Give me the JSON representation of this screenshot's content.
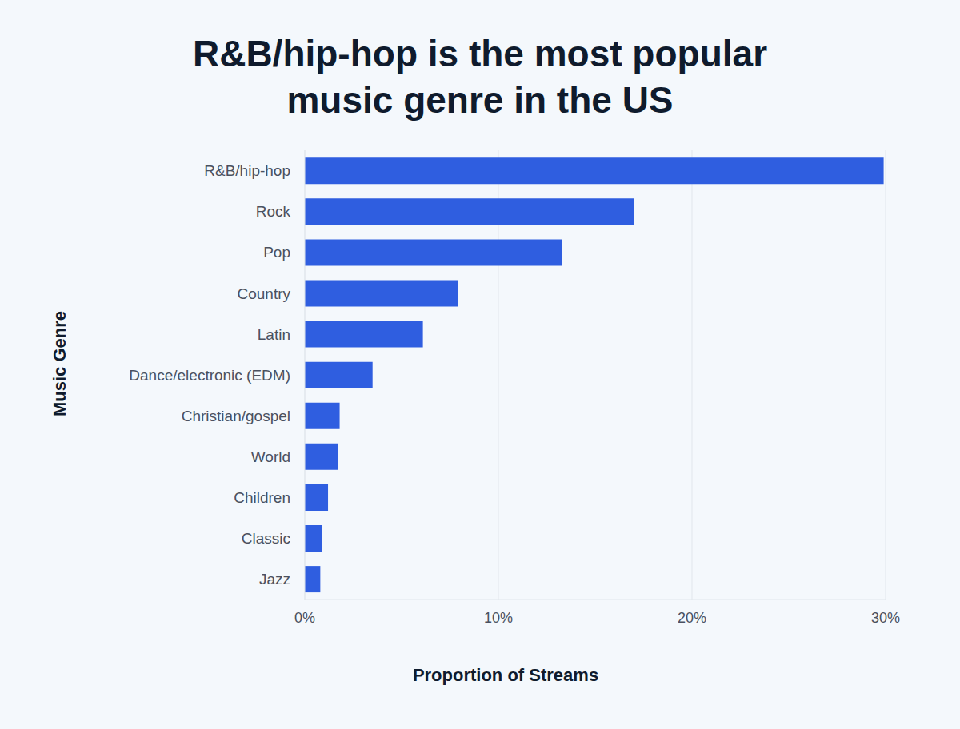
{
  "chart_data": {
    "type": "bar",
    "title": "R&B/hip-hop is the most popular music genre in the US",
    "orientation": "horizontal",
    "categories": [
      "R&B/hip-hop",
      "Rock",
      "Pop",
      "Country",
      "Latin",
      "Dance/electronic (EDM)",
      "Christian/gospel",
      "World",
      "Children",
      "Classic",
      "Jazz"
    ],
    "values": [
      29.9,
      17.0,
      13.3,
      7.9,
      6.1,
      3.5,
      1.8,
      1.7,
      1.2,
      0.9,
      0.8
    ],
    "color": "#2f5ee0",
    "x_label": "Proportion of Streams",
    "y_label": "Music Genre",
    "xlim": [
      0,
      30
    ],
    "xticks": [
      {
        "value": 0,
        "label": "0%"
      },
      {
        "value": 10,
        "label": "10%"
      },
      {
        "value": 20,
        "label": "20%"
      },
      {
        "value": 30,
        "label": "30%"
      }
    ],
    "grid": true
  }
}
